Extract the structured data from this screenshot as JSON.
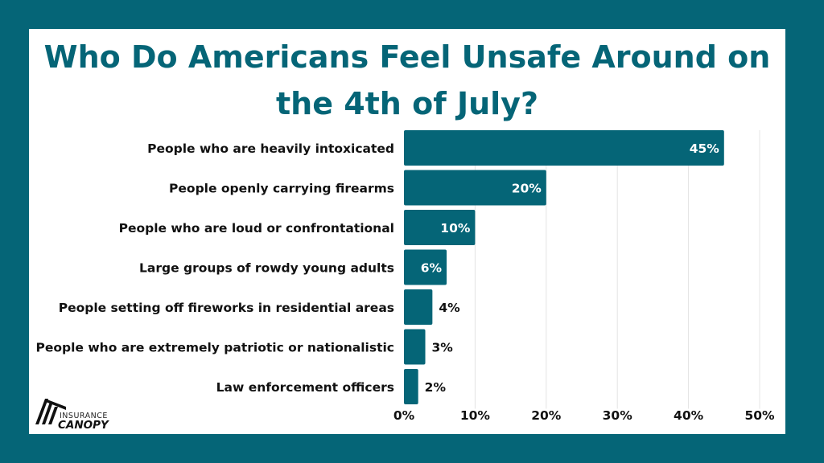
{
  "chart_data": {
    "type": "bar",
    "orientation": "horizontal",
    "title": "Who Do Americans Feel Unsafe Around on the 4th of July?",
    "categories": [
      "People who are heavily intoxicated",
      "People openly carrying firearms",
      "People who are loud or confrontational",
      "Large groups of rowdy young adults",
      "People setting off fireworks in residential areas",
      "People who are extremely patriotic or nationalistic",
      "Law enforcement officers"
    ],
    "values": [
      45,
      20,
      10,
      6,
      4,
      3,
      2
    ],
    "value_labels": [
      "45%",
      "20%",
      "10%",
      "6%",
      "4%",
      "3%",
      "2%"
    ],
    "xlim": [
      0,
      50
    ],
    "x_ticks": [
      0,
      10,
      20,
      30,
      40,
      50
    ],
    "x_tick_labels": [
      "0%",
      "10%",
      "20%",
      "30%",
      "40%",
      "50%"
    ],
    "xlabel": "",
    "ylabel": "",
    "grid": true,
    "colors": {
      "bar": "#056577",
      "background": "#056577",
      "title": "#056577"
    }
  },
  "brand": {
    "line1": "INSURANCE",
    "line2": "CANOPY"
  }
}
